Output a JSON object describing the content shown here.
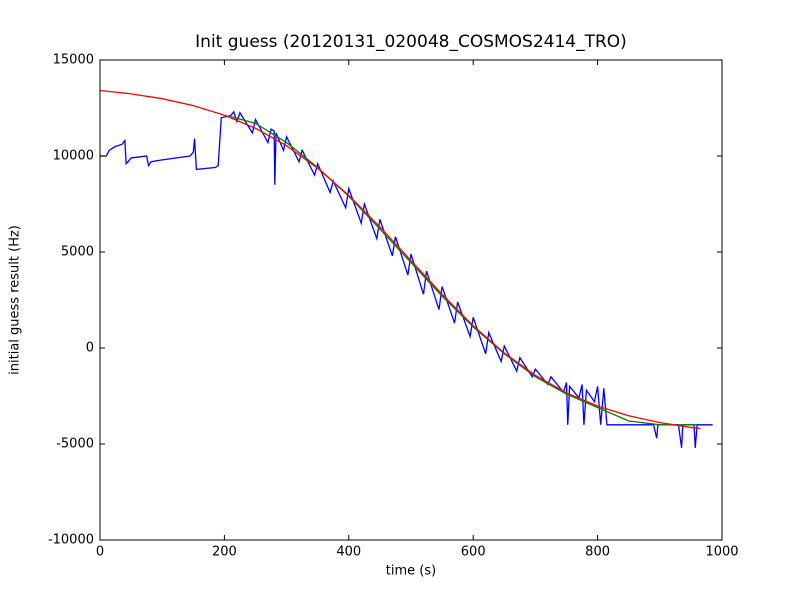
{
  "chart_data": {
    "type": "line",
    "title": "Init guess (20120131_020048_COSMOS2414_TRO)",
    "x_label": "time (s)",
    "y_label": "initial guess result (Hz)",
    "xlim": [
      0,
      1000
    ],
    "ylim": [
      -10000,
      15000
    ],
    "xticks": [
      0,
      200,
      400,
      600,
      800,
      1000
    ],
    "yticks": [
      -10000,
      -5000,
      0,
      5000,
      10000,
      15000
    ],
    "grid": false,
    "series": [
      {
        "color": "#0000ff",
        "x": [
          0,
          10,
          15,
          25,
          35,
          40,
          42,
          45,
          50,
          75,
          78,
          82,
          100,
          145,
          150,
          152,
          155,
          185,
          190,
          195,
          210,
          215,
          220,
          225,
          245,
          250,
          270,
          275,
          280,
          281,
          283,
          295,
          300,
          320,
          325,
          345,
          350,
          370,
          375,
          395,
          400,
          420,
          425,
          445,
          450,
          470,
          475,
          495,
          500,
          520,
          525,
          545,
          550,
          570,
          575,
          595,
          600,
          620,
          625,
          645,
          650,
          670,
          675,
          695,
          700,
          720,
          725,
          745,
          750,
          752,
          755,
          770,
          775,
          778,
          782,
          795,
          800,
          805,
          810,
          815,
          890,
          895,
          897,
          930,
          935,
          937,
          955,
          957,
          960,
          985
        ],
        "values": [
          10000,
          10000,
          10300,
          10500,
          10600,
          10800,
          9600,
          9700,
          9900,
          10000,
          9500,
          9700,
          9800,
          10000,
          10200,
          10900,
          9300,
          9400,
          9500,
          12000,
          12100,
          12300,
          11800,
          12250,
          11200,
          11900,
          10700,
          11400,
          11300,
          8500,
          11200,
          10300,
          11000,
          9700,
          10300,
          9000,
          9600,
          8100,
          8700,
          7300,
          8300,
          6500,
          7500,
          5700,
          6700,
          4800,
          5800,
          3800,
          4900,
          2800,
          4000,
          2000,
          3200,
          1300,
          2400,
          600,
          1600,
          -300,
          800,
          -700,
          100,
          -1200,
          -500,
          -1500,
          -1100,
          -1900,
          -1500,
          -2300,
          -1800,
          -4000,
          -2000,
          -2600,
          -1900,
          -4000,
          -2200,
          -2800,
          -2000,
          -4000,
          -2100,
          -4000,
          -4000,
          -4700,
          -4000,
          -4000,
          -5200,
          -4000,
          -4000,
          -5200,
          -4000,
          -4000
        ]
      },
      {
        "color": "#008000",
        "x": [
          210,
          250,
          300,
          350,
          400,
          450,
          500,
          550,
          600,
          650,
          700,
          750,
          800,
          850,
          900,
          960
        ],
        "values": [
          12050,
          11700,
          10700,
          9400,
          7900,
          6200,
          4450,
          2700,
          1100,
          -300,
          -1500,
          -2400,
          -3100,
          -3800,
          -4000,
          -4000
        ]
      },
      {
        "color": "#ff0000",
        "x": [
          0,
          50,
          100,
          150,
          200,
          250,
          300,
          350,
          400,
          450,
          500,
          550,
          600,
          650,
          700,
          750,
          800,
          850,
          900,
          950,
          965
        ],
        "values": [
          13412,
          13237,
          12985,
          12625,
          12126,
          11440,
          10529,
          9364,
          7942,
          6308,
          4550,
          2793,
          1158,
          -264,
          -1430,
          -2341,
          -3026,
          -3527,
          -3885,
          -4137,
          -4197
        ]
      }
    ]
  }
}
